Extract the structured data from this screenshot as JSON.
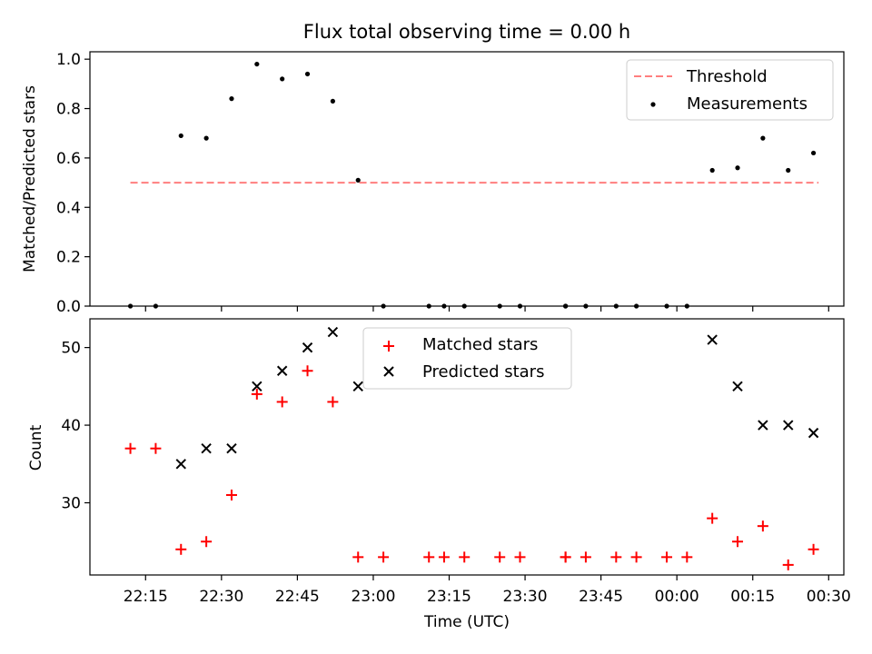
{
  "chart_data": [
    {
      "type": "scatter",
      "title": "Flux total observing time = 0.00 h",
      "xlabel": "",
      "ylabel": "Matched/Predicted stars",
      "ylim": [
        0,
        1.03
      ],
      "yticks": [
        "0.0",
        "0.2",
        "0.4",
        "0.6",
        "0.8",
        "1.0"
      ],
      "ytick_values": [
        0,
        0.2,
        0.4,
        0.6,
        0.8,
        1.0
      ],
      "legend_position": "top-right",
      "threshold": {
        "name": "Threshold",
        "value": 0.5,
        "x_start": "22:12",
        "x_end": "00:28",
        "color": "#ff7f7f",
        "style": "dashed"
      },
      "series": [
        {
          "name": "Measurements",
          "marker": "dot",
          "color": "#000000",
          "x": [
            "22:12",
            "22:17",
            "22:22",
            "22:27",
            "22:32",
            "22:37",
            "22:42",
            "22:47",
            "22:52",
            "22:57",
            "23:02",
            "23:11",
            "23:14",
            "23:18",
            "23:25",
            "23:29",
            "23:38",
            "23:38",
            "23:42",
            "23:48",
            "23:52",
            "23:58",
            "00:02",
            "00:07",
            "00:12",
            "00:17",
            "00:22",
            "00:27"
          ],
          "y": [
            0.0,
            0.0,
            0.69,
            0.68,
            0.84,
            0.98,
            0.92,
            0.94,
            0.83,
            0.51,
            0.0,
            0.0,
            0.0,
            0.0,
            0.0,
            0.0,
            0.0,
            0.0,
            0.0,
            0.0,
            0.0,
            0.0,
            0.0,
            0.55,
            0.56,
            0.68,
            0.55,
            0.62
          ]
        }
      ]
    },
    {
      "type": "scatter",
      "title": "",
      "xlabel": "Time (UTC)",
      "ylabel": "Count",
      "ylim": [
        20.7,
        53.7
      ],
      "yticks": [
        "30",
        "40",
        "50"
      ],
      "ytick_values": [
        30,
        40,
        50
      ],
      "legend_position": "top-center",
      "series": [
        {
          "name": "Matched stars",
          "marker": "plus",
          "color": "#ff0000",
          "x": [
            "22:12",
            "22:17",
            "22:22",
            "22:27",
            "22:32",
            "22:37",
            "22:42",
            "22:47",
            "22:52",
            "22:57",
            "23:02",
            "23:11",
            "23:14",
            "23:18",
            "23:25",
            "23:29",
            "23:38",
            "23:38",
            "23:42",
            "23:48",
            "23:52",
            "23:58",
            "00:02",
            "00:07",
            "00:12",
            "00:17",
            "00:22",
            "00:27"
          ],
          "y": [
            37,
            37,
            24,
            25,
            31,
            44,
            43,
            47,
            43,
            23,
            23,
            23,
            23,
            23,
            23,
            23,
            23,
            23,
            23,
            23,
            23,
            23,
            23,
            28,
            25,
            27,
            22,
            24
          ]
        },
        {
          "name": "Predicted stars",
          "marker": "x",
          "color": "#000000",
          "x": [
            "22:22",
            "22:27",
            "22:32",
            "22:37",
            "22:42",
            "22:47",
            "22:52",
            "22:57",
            "00:07",
            "00:12",
            "00:17",
            "00:22",
            "00:27"
          ],
          "y": [
            35,
            37,
            37,
            45,
            47,
            50,
            52,
            45,
            51,
            45,
            40,
            40,
            39
          ]
        }
      ]
    }
  ],
  "x_axis": {
    "range": [
      "22:04",
      "00:33"
    ],
    "ticks": [
      "22:15",
      "22:30",
      "22:45",
      "23:00",
      "23:15",
      "23:30",
      "23:45",
      "00:00",
      "00:15",
      "00:30"
    ]
  }
}
